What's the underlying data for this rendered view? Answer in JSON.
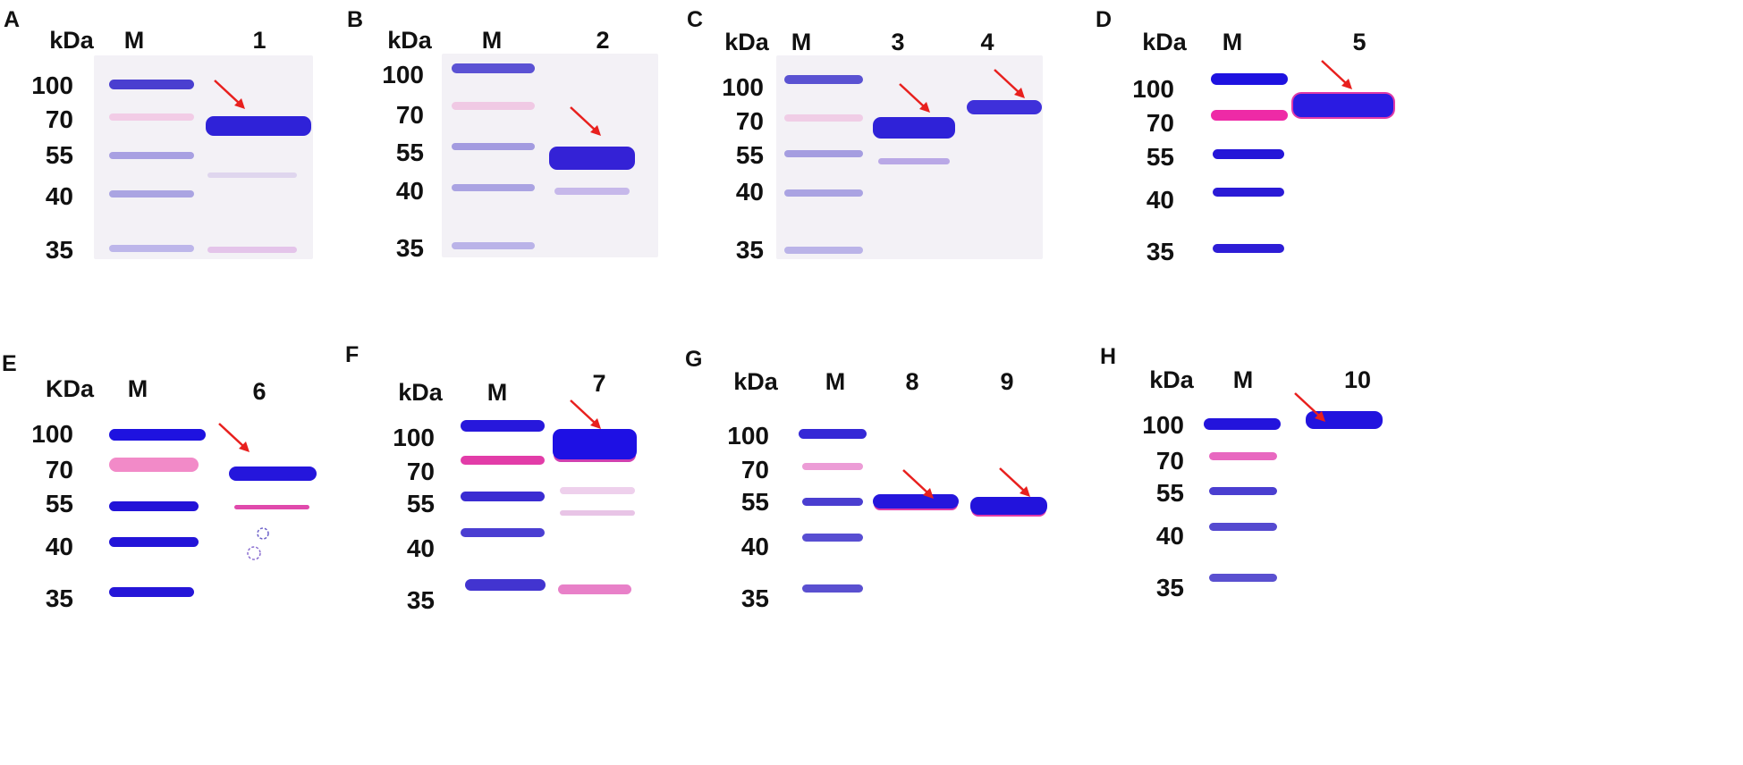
{
  "figure": {
    "unit_label_lower": "kDa",
    "unit_label_upper": "KDa",
    "marker_lane_label": "M",
    "marker_sizes": [
      "100",
      "70",
      "55",
      "40",
      "35"
    ],
    "arrow_color": "#e8201e",
    "panels": [
      {
        "letter": "A",
        "unit": "kDa",
        "lanes": [
          "M",
          "1"
        ]
      },
      {
        "letter": "B",
        "unit": "kDa",
        "lanes": [
          "M",
          "2"
        ]
      },
      {
        "letter": "C",
        "unit": "kDa",
        "lanes": [
          "M",
          "3",
          "4"
        ]
      },
      {
        "letter": "D",
        "unit": "kDa",
        "lanes": [
          "M",
          "5"
        ]
      },
      {
        "letter": "E",
        "unit": "KDa",
        "lanes": [
          "M",
          "6"
        ]
      },
      {
        "letter": "F",
        "unit": "kDa",
        "lanes": [
          "M",
          "7"
        ]
      },
      {
        "letter": "G",
        "unit": "kDa",
        "lanes": [
          "M",
          "8",
          "9"
        ]
      },
      {
        "letter": "H",
        "unit": "kDa",
        "lanes": [
          "M",
          "10"
        ]
      }
    ]
  }
}
